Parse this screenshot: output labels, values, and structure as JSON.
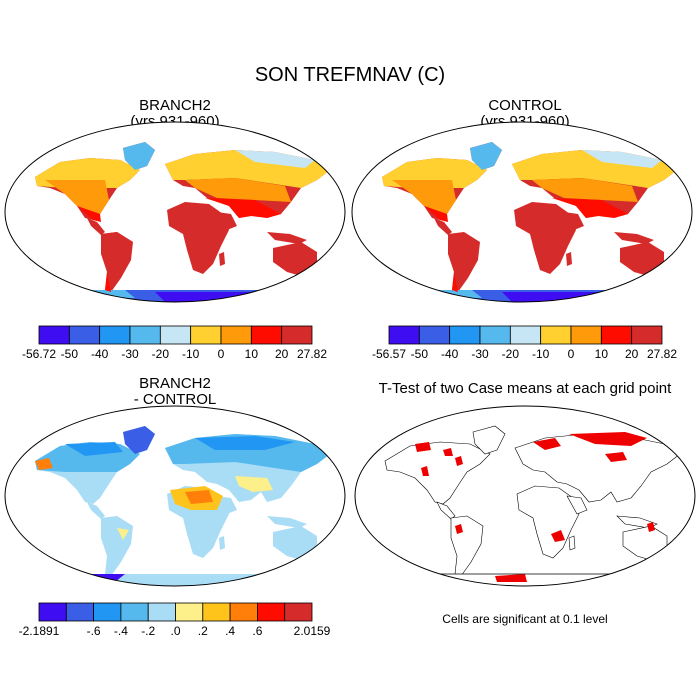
{
  "title": "SON TREFMNAV (C)",
  "panels": [
    {
      "id": "branch2",
      "title_line1": "BRANCH2",
      "title_line2": "(yrs 931-960)"
    },
    {
      "id": "control",
      "title_line1": "CONTROL",
      "title_line2": "(yrs 931-960)"
    },
    {
      "id": "difference",
      "title_line1": "BRANCH2",
      "title_line2": "- CONTROL"
    },
    {
      "id": "ttest",
      "title_line1": "T-Test of two Case means at each grid point",
      "title_line2": ""
    }
  ],
  "colorbars": [
    {
      "id": "branch2-colorbar",
      "colors": [
        "#3f0df2",
        "#3b5ee6",
        "#2196f3",
        "#56b9ee",
        "#c6e6f5",
        "#ffd02f",
        "#ff9a0a",
        "#ff0c00",
        "#d62b2b"
      ],
      "labels": [
        "-56.72",
        "-50",
        "-40",
        "-30",
        "-20",
        "-10",
        "0",
        "10",
        "20",
        "27.82"
      ]
    },
    {
      "id": "control-colorbar",
      "colors": [
        "#3f0df2",
        "#3b5ee6",
        "#2196f3",
        "#56b9ee",
        "#c6e6f5",
        "#ffd02f",
        "#ff9a0a",
        "#ff0c00",
        "#d62b2b"
      ],
      "labels": [
        "-56.57",
        "-50",
        "-40",
        "-30",
        "-20",
        "-10",
        "0",
        "10",
        "20",
        "27.82"
      ]
    },
    {
      "id": "difference-colorbar",
      "colors": [
        "#3f0df2",
        "#3b5ee6",
        "#2196f3",
        "#56b9ee",
        "#a9dcf5",
        "#fdf08a",
        "#ffc41c",
        "#ff7f0a",
        "#ff0c00",
        "#d62b2b"
      ],
      "labels": [
        "-2.1891",
        "-.6",
        "-.4",
        "-.2",
        ".0",
        ".2",
        ".4",
        ".6",
        "2.0159"
      ],
      "label_slots": [
        0,
        2,
        3,
        4,
        5,
        6,
        7,
        8,
        10
      ]
    }
  ],
  "significance_note": "Cells are significant at 0.1 level"
}
